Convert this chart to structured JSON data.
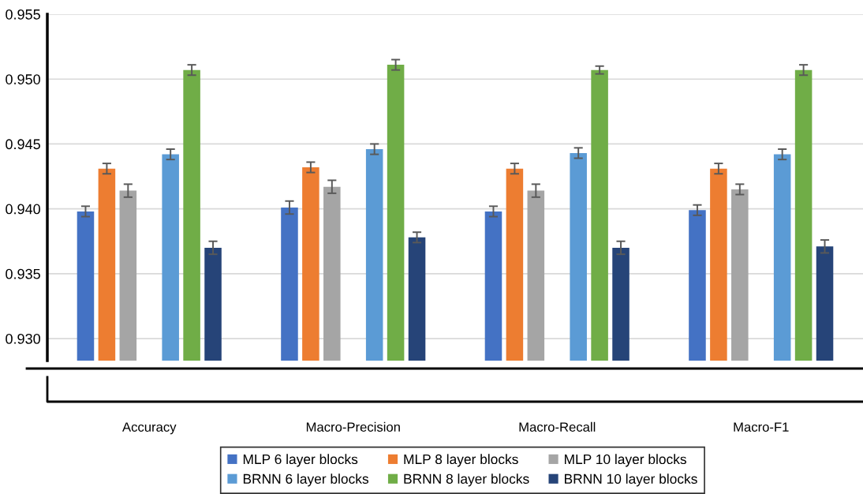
{
  "chart_data": {
    "type": "bar",
    "categories": [
      "Accuracy",
      "Macro-Precision",
      "Macro-Recall",
      "Macro-F1"
    ],
    "series": [
      {
        "name": "MLP 6 layer blocks",
        "color": "#4472c4",
        "values": [
          0.9398,
          0.9401,
          0.9398,
          0.9399
        ],
        "errors": [
          0.0004,
          0.0005,
          0.0004,
          0.0004
        ]
      },
      {
        "name": "MLP 8 layer blocks",
        "color": "#ed7d31",
        "values": [
          0.9431,
          0.9432,
          0.9431,
          0.9431
        ],
        "errors": [
          0.0004,
          0.0004,
          0.0004,
          0.0004
        ]
      },
      {
        "name": "MLP 10 layer blocks",
        "color": "#a5a5a5",
        "values": [
          0.9414,
          0.9417,
          0.9414,
          0.9415
        ],
        "errors": [
          0.0005,
          0.0005,
          0.0005,
          0.0004
        ]
      },
      {
        "name": "BRNN 6 layer blocks",
        "color": "#5b9bd5",
        "values": [
          0.9442,
          0.9446,
          0.9443,
          0.9442
        ],
        "errors": [
          0.0004,
          0.0004,
          0.0004,
          0.0004
        ]
      },
      {
        "name": "BRNN 8 layer blocks",
        "color": "#70ad47",
        "values": [
          0.9507,
          0.9511,
          0.9507,
          0.9507
        ],
        "errors": [
          0.0004,
          0.0004,
          0.0003,
          0.0004
        ]
      },
      {
        "name": "BRNN 10 layer blocks",
        "color": "#264478",
        "values": [
          0.937,
          0.9378,
          0.937,
          0.9371
        ],
        "errors": [
          0.0005,
          0.0004,
          0.0005,
          0.0005
        ]
      }
    ],
    "ylim": [
      0.9283,
      0.955
    ],
    "yticks": [
      {
        "value": 0.93,
        "label": "0.930"
      },
      {
        "value": 0.935,
        "label": "0.935"
      },
      {
        "value": 0.94,
        "label": "0.940"
      },
      {
        "value": 0.945,
        "label": "0.945"
      },
      {
        "value": 0.95,
        "label": "0.950"
      },
      {
        "value": 0.955,
        "label": "0.955"
      }
    ],
    "grid": "y",
    "legend": "bottom"
  }
}
